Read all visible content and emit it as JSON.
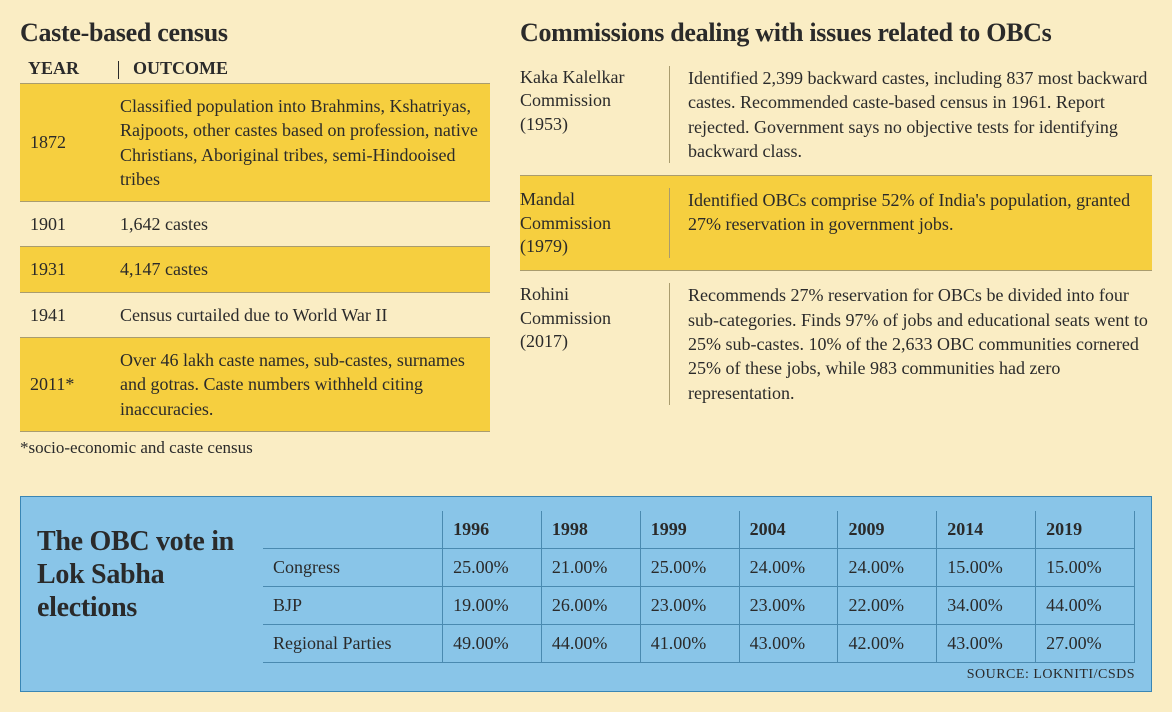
{
  "colors": {
    "page_bg": "#faedc4",
    "highlight_row": "#f6cf3f",
    "bottom_bg": "#89c5e8",
    "bottom_border": "#3a86b4",
    "rule": "#a99c6e",
    "text": "#2a2a2a"
  },
  "census": {
    "title": "Caste-based census",
    "headers": {
      "year": "YEAR",
      "outcome": "OUTCOME"
    },
    "rows": [
      {
        "year": "1872",
        "outcome": "Classified population into Brahmins, Kshatriyas, Rajpoots, other castes based on profession, native Christians, Aboriginal tribes, semi-Hindooised tribes",
        "highlight": true
      },
      {
        "year": "1901",
        "outcome": "1,642 castes",
        "highlight": false
      },
      {
        "year": "1931",
        "outcome": "4,147 castes",
        "highlight": true
      },
      {
        "year": "1941",
        "outcome": "Census curtailed due to World War II",
        "highlight": false
      },
      {
        "year": "2011*",
        "outcome": "Over 46 lakh caste names, sub-castes, surnames and gotras. Caste numbers withheld citing inaccuracies.",
        "highlight": true
      }
    ],
    "note": "*socio-economic and caste census"
  },
  "commissions": {
    "title": "Commissions dealing with issues related to OBCs",
    "items": [
      {
        "name": "Kaka Kalelkar Commission (1953)",
        "desc": "Identified 2,399 backward castes, including 837 most backward castes. Recommended caste-based census in 1961. Report rejected. Government says no objective tests for identifying backward class.",
        "highlight": false
      },
      {
        "name": "Mandal Commission (1979)",
        "desc": "Identified OBCs comprise 52% of India's population, granted 27% reservation in government jobs.",
        "highlight": true
      },
      {
        "name": "Rohini Commission (2017)",
        "desc": "Recommends 27% reservation for OBCs be divided into four sub-categories. Finds 97% of jobs and educational seats went to 25% sub-castes. 10% of the 2,633 OBC communities cornered 25% of these jobs, while 983 communities had zero representation.",
        "highlight": false
      }
    ]
  },
  "vote": {
    "title": "The OBC vote in Lok Sabha elections",
    "years": [
      "1996",
      "1998",
      "1999",
      "2004",
      "2009",
      "2014",
      "2019"
    ],
    "rows": [
      {
        "party": "Congress",
        "values": [
          "25.00%",
          "21.00%",
          "25.00%",
          "24.00%",
          "24.00%",
          "15.00%",
          "15.00%"
        ]
      },
      {
        "party": "BJP",
        "values": [
          "19.00%",
          "26.00%",
          "23.00%",
          "23.00%",
          "22.00%",
          "34.00%",
          "44.00%"
        ]
      },
      {
        "party": "Regional Parties",
        "values": [
          "49.00%",
          "44.00%",
          "41.00%",
          "43.00%",
          "42.00%",
          "43.00%",
          "27.00%"
        ]
      }
    ],
    "source": "SOURCE: LOKNITI/CSDS"
  }
}
